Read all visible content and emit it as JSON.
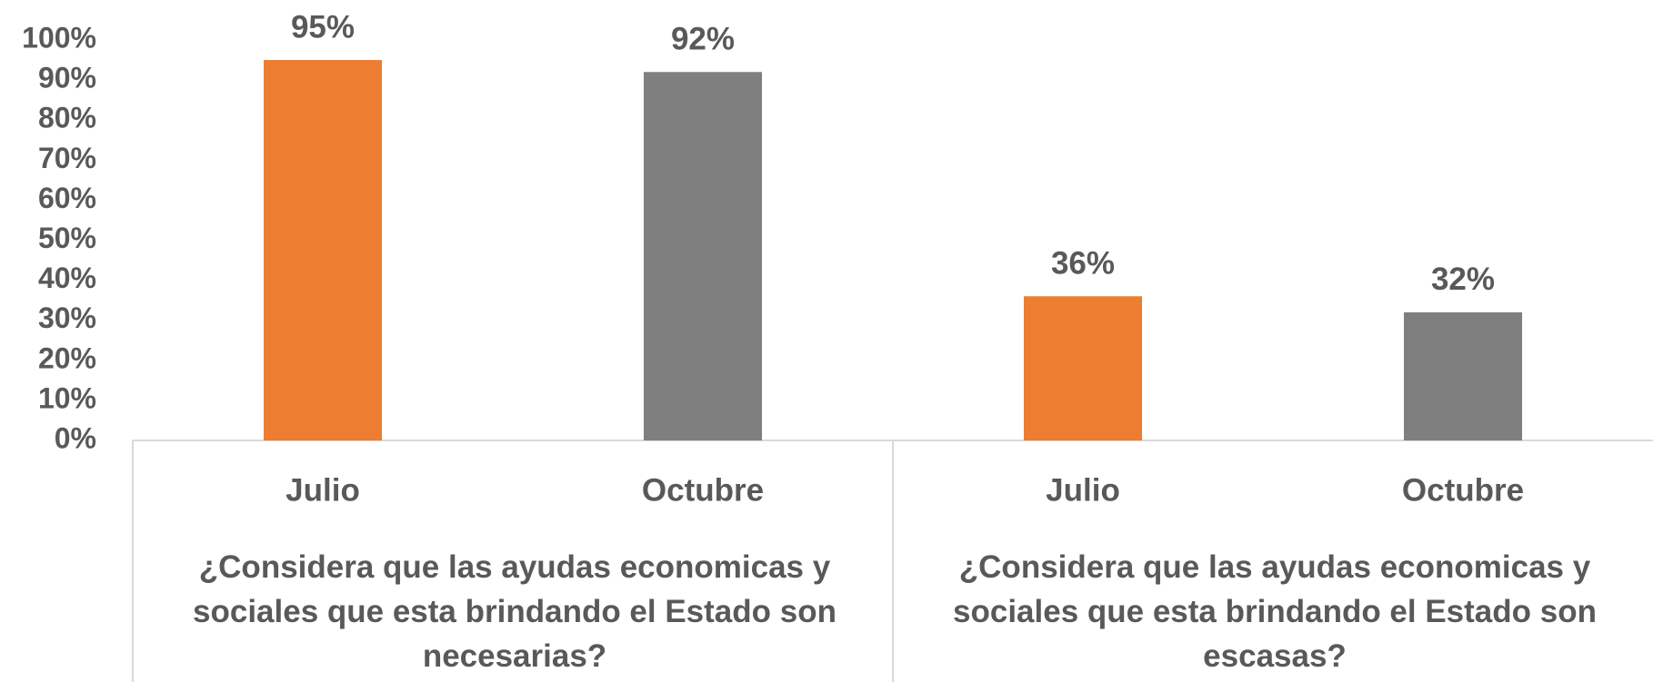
{
  "chart_data": {
    "type": "bar",
    "categories": [
      "Julio",
      "Octubre",
      "Julio",
      "Octubre"
    ],
    "group_labels": [
      "¿Considera que las ayudas economicas y sociales que esta brindando el Estado son necesarias?",
      "¿Considera que las ayudas economicas y sociales que esta brindando el Estado son escasas?"
    ],
    "values": [
      95,
      92,
      36,
      32
    ],
    "value_labels": [
      "95%",
      "92%",
      "36%",
      "32%"
    ],
    "colors": [
      "#ED7D31",
      "#7F7F7F",
      "#ED7D31",
      "#7F7F7F"
    ],
    "ylim": [
      0,
      100
    ],
    "yticks": [
      {
        "value": 0,
        "label": "0%"
      },
      {
        "value": 10,
        "label": "10%"
      },
      {
        "value": 20,
        "label": "20%"
      },
      {
        "value": 30,
        "label": "30%"
      },
      {
        "value": 40,
        "label": "40%"
      },
      {
        "value": 50,
        "label": "50%"
      },
      {
        "value": 60,
        "label": "60%"
      },
      {
        "value": 70,
        "label": "70%"
      },
      {
        "value": 80,
        "label": "80%"
      },
      {
        "value": 90,
        "label": "90%"
      },
      {
        "value": 100,
        "label": "100%"
      }
    ],
    "grid": false
  }
}
